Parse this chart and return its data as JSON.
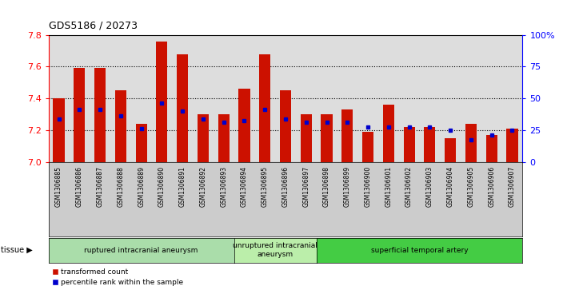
{
  "title": "GDS5186 / 20273",
  "samples": [
    "GSM1306885",
    "GSM1306886",
    "GSM1306887",
    "GSM1306888",
    "GSM1306889",
    "GSM1306890",
    "GSM1306891",
    "GSM1306892",
    "GSM1306893",
    "GSM1306894",
    "GSM1306895",
    "GSM1306896",
    "GSM1306897",
    "GSM1306898",
    "GSM1306899",
    "GSM1306900",
    "GSM1306901",
    "GSM1306902",
    "GSM1306903",
    "GSM1306904",
    "GSM1306905",
    "GSM1306906",
    "GSM1306907"
  ],
  "bar_tops": [
    7.4,
    7.59,
    7.59,
    7.45,
    7.24,
    7.76,
    7.68,
    7.3,
    7.3,
    7.46,
    7.68,
    7.45,
    7.3,
    7.3,
    7.33,
    7.19,
    7.36,
    7.22,
    7.22,
    7.15,
    7.24,
    7.17,
    7.21
  ],
  "blue_dot_y": [
    7.27,
    7.33,
    7.33,
    7.29,
    7.21,
    7.37,
    7.32,
    7.27,
    7.25,
    7.26,
    7.33,
    7.27,
    7.25,
    7.25,
    7.25,
    7.22,
    7.22,
    7.22,
    7.22,
    7.2,
    7.14,
    7.17,
    7.2
  ],
  "groups": [
    {
      "label": "ruptured intracranial aneurysm",
      "start": 0,
      "end": 9,
      "color": "#aaddaa"
    },
    {
      "label": "unruptured intracranial\naneurysm",
      "start": 9,
      "end": 13,
      "color": "#bbeeaa"
    },
    {
      "label": "superficial temporal artery",
      "start": 13,
      "end": 23,
      "color": "#44cc44"
    }
  ],
  "ylim": [
    7.0,
    7.8
  ],
  "yticks_left": [
    7.0,
    7.2,
    7.4,
    7.6,
    7.8
  ],
  "yticks_right": [
    0,
    25,
    50,
    75,
    100
  ],
  "bar_color": "#cc1100",
  "dot_color": "#0000cc",
  "baseline": 7.0,
  "bar_width": 0.55,
  "plot_bg": "#dddddd",
  "label_bg": "#cccccc",
  "legend_items": [
    {
      "label": "transformed count",
      "color": "#cc1100"
    },
    {
      "label": "percentile rank within the sample",
      "color": "#0000cc"
    }
  ]
}
